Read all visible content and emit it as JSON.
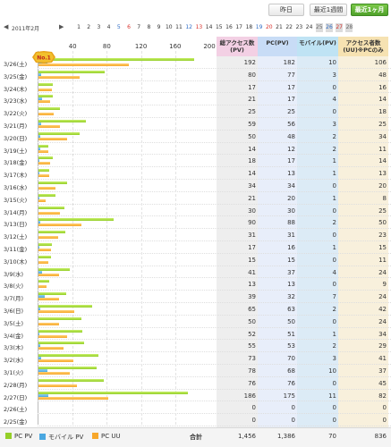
{
  "buttons": {
    "yesterday": "昨日",
    "last_week": "最近1週間",
    "last_month": "最近1ヶ月"
  },
  "calendar": {
    "prev": "◀",
    "next": "▶",
    "month": "2011年2月",
    "days": [
      "1",
      "2",
      "3",
      "4",
      "5",
      "6",
      "7",
      "8",
      "9",
      "10",
      "11",
      "12",
      "13",
      "14",
      "15",
      "16",
      "17",
      "18",
      "19",
      "20",
      "21",
      "22",
      "23",
      "24",
      "25",
      "26",
      "27",
      "28"
    ]
  },
  "no1_badge": "No.1",
  "table": {
    "headers": [
      "総アクセス数\n(PV)",
      "PC(PV)",
      "モバイル(PV)",
      "アクセス者数\n(UU)※PCのみ"
    ],
    "rows": [
      {
        "date": "3/26(土)",
        "total": "192",
        "pc": "182",
        "mobile": "10",
        "uu": "106"
      },
      {
        "date": "3/25(金)",
        "total": "80",
        "pc": "77",
        "mobile": "3",
        "uu": "48"
      },
      {
        "date": "3/24(木)",
        "total": "17",
        "pc": "17",
        "mobile": "0",
        "uu": "16"
      },
      {
        "date": "3/23(水)",
        "total": "21",
        "pc": "17",
        "mobile": "4",
        "uu": "14"
      },
      {
        "date": "3/22(火)",
        "total": "25",
        "pc": "25",
        "mobile": "0",
        "uu": "18"
      },
      {
        "date": "3/21(月)",
        "total": "59",
        "pc": "56",
        "mobile": "3",
        "uu": "25"
      },
      {
        "date": "3/20(日)",
        "total": "50",
        "pc": "48",
        "mobile": "2",
        "uu": "34"
      },
      {
        "date": "3/19(土)",
        "total": "14",
        "pc": "12",
        "mobile": "2",
        "uu": "11"
      },
      {
        "date": "3/18(金)",
        "total": "18",
        "pc": "17",
        "mobile": "1",
        "uu": "14"
      },
      {
        "date": "3/17(木)",
        "total": "14",
        "pc": "13",
        "mobile": "1",
        "uu": "13"
      },
      {
        "date": "3/16(水)",
        "total": "34",
        "pc": "34",
        "mobile": "0",
        "uu": "20"
      },
      {
        "date": "3/15(火)",
        "total": "21",
        "pc": "20",
        "mobile": "1",
        "uu": "8"
      },
      {
        "date": "3/14(月)",
        "total": "30",
        "pc": "30",
        "mobile": "0",
        "uu": "25"
      },
      {
        "date": "3/13(日)",
        "total": "90",
        "pc": "88",
        "mobile": "2",
        "uu": "50"
      },
      {
        "date": "3/12(土)",
        "total": "31",
        "pc": "31",
        "mobile": "0",
        "uu": "23"
      },
      {
        "date": "3/11(金)",
        "total": "17",
        "pc": "16",
        "mobile": "1",
        "uu": "15"
      },
      {
        "date": "3/10(木)",
        "total": "15",
        "pc": "15",
        "mobile": "0",
        "uu": "11"
      },
      {
        "date": "3/9(水)",
        "total": "41",
        "pc": "37",
        "mobile": "4",
        "uu": "24"
      },
      {
        "date": "3/8(火)",
        "total": "13",
        "pc": "13",
        "mobile": "0",
        "uu": "9"
      },
      {
        "date": "3/7(月)",
        "total": "39",
        "pc": "32",
        "mobile": "7",
        "uu": "24"
      },
      {
        "date": "3/6(日)",
        "total": "65",
        "pc": "63",
        "mobile": "2",
        "uu": "42"
      },
      {
        "date": "3/5(土)",
        "total": "50",
        "pc": "50",
        "mobile": "0",
        "uu": "24"
      },
      {
        "date": "3/4(金)",
        "total": "52",
        "pc": "51",
        "mobile": "1",
        "uu": "34"
      },
      {
        "date": "3/3(木)",
        "total": "55",
        "pc": "53",
        "mobile": "2",
        "uu": "29"
      },
      {
        "date": "3/2(水)",
        "total": "73",
        "pc": "70",
        "mobile": "3",
        "uu": "41"
      },
      {
        "date": "3/1(火)",
        "total": "78",
        "pc": "68",
        "mobile": "10",
        "uu": "37"
      },
      {
        "date": "2/28(月)",
        "total": "76",
        "pc": "76",
        "mobile": "0",
        "uu": "45"
      },
      {
        "date": "2/27(日)",
        "total": "186",
        "pc": "175",
        "mobile": "11",
        "uu": "82"
      },
      {
        "date": "2/26(土)",
        "total": "0",
        "pc": "0",
        "mobile": "0",
        "uu": "0"
      },
      {
        "date": "2/25(金)",
        "total": "0",
        "pc": "0",
        "mobile": "0",
        "uu": "0"
      }
    ],
    "totals": {
      "label": "合計",
      "total": "1,456",
      "pc": "1,386",
      "mobile": "70",
      "uu": "836"
    }
  },
  "chart_data": {
    "type": "bar",
    "orientation": "horizontal",
    "xlim": [
      0,
      200
    ],
    "xticks": [
      "40",
      "80",
      "120",
      "160",
      "200"
    ],
    "categories": [
      "3/26(土)",
      "3/25(金)",
      "3/24(木)",
      "3/23(水)",
      "3/22(火)",
      "3/21(月)",
      "3/20(日)",
      "3/19(土)",
      "3/18(金)",
      "3/17(木)",
      "3/16(水)",
      "3/15(火)",
      "3/14(月)",
      "3/13(日)",
      "3/12(土)",
      "3/11(金)",
      "3/10(木)",
      "3/9(水)",
      "3/8(火)",
      "3/7(月)",
      "3/6(日)",
      "3/5(土)",
      "3/4(金)",
      "3/3(木)",
      "3/2(水)",
      "3/1(火)",
      "2/28(月)",
      "2/27(日)",
      "2/26(土)",
      "2/25(金)"
    ],
    "series": [
      {
        "name": "PC PV",
        "values": [
          182,
          77,
          17,
          17,
          25,
          56,
          48,
          12,
          17,
          13,
          34,
          20,
          30,
          88,
          31,
          16,
          15,
          37,
          13,
          32,
          63,
          50,
          51,
          53,
          70,
          68,
          76,
          175,
          0,
          0
        ]
      },
      {
        "name": "モバイル PV",
        "values": [
          10,
          3,
          0,
          4,
          0,
          3,
          2,
          2,
          1,
          1,
          0,
          1,
          0,
          2,
          0,
          1,
          0,
          4,
          0,
          7,
          2,
          0,
          1,
          2,
          3,
          10,
          0,
          11,
          0,
          0
        ]
      },
      {
        "name": "PC UU",
        "values": [
          106,
          48,
          16,
          14,
          18,
          25,
          34,
          11,
          14,
          13,
          20,
          8,
          25,
          50,
          23,
          15,
          11,
          24,
          9,
          24,
          42,
          24,
          34,
          29,
          41,
          37,
          45,
          82,
          0,
          0
        ]
      }
    ],
    "legend": "bottom-left"
  },
  "legend": {
    "pcpv": "PC PV",
    "mobile": "モバイル PV",
    "pcuu": "PC UU"
  },
  "colors": {
    "pcpv": "#94cf28",
    "mobile": "#4aa7e0",
    "pcuu": "#f7a72b",
    "total_bg": "#eeeeee",
    "pc_bg": "#e8eefa",
    "mobile_bg": "#dcebf6",
    "uu_bg": "#f8f0dc",
    "active_button": "#4fa12a"
  }
}
